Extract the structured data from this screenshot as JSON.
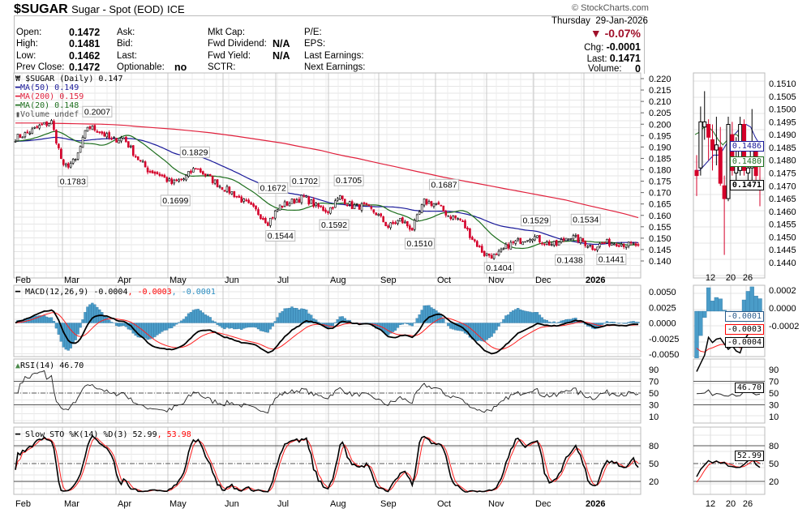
{
  "header": {
    "symbol": "$SUGAR",
    "name": "Sugar - Spot (EOD)",
    "exchange": "ICE",
    "watermark": "© StockCharts.com",
    "day": "Thursday",
    "date": "29-Jan-2026",
    "pct_change": "-0.07%",
    "chg_label": "Chg:",
    "chg": "-0.0001",
    "last_label": "Last:",
    "last": "0.1471",
    "volume_label": "Volume:",
    "volume": "0",
    "fields": [
      {
        "label": "Open:",
        "value": "0.1472"
      },
      {
        "label": "High:",
        "value": "0.1481"
      },
      {
        "label": "Low:",
        "value": "0.1462"
      },
      {
        "label": "Prev Close:",
        "value": "0.1472"
      },
      {
        "label": "Ask:",
        "value": ""
      },
      {
        "label": "Bid:",
        "value": ""
      },
      {
        "label": "Last:",
        "value": ""
      },
      {
        "label": "Optionable:",
        "value": "no"
      },
      {
        "label": "Mkt Cap:",
        "value": ""
      },
      {
        "label": "Fwd Dividend:",
        "value": "N/A"
      },
      {
        "label": "Fwd Yield:",
        "value": "N/A"
      },
      {
        "label": "SCTR:",
        "value": ""
      },
      {
        "label": "P/E:",
        "value": ""
      },
      {
        "label": "EPS:",
        "value": ""
      },
      {
        "label": "Last Earnings:",
        "value": ""
      },
      {
        "label": "Next Earnings:",
        "value": ""
      }
    ]
  },
  "legend": {
    "price": "$SUGAR (Daily) 0.147",
    "ma50": "MA(50) 0.149",
    "ma200": "MA(200) 0.159",
    "ma20": "MA(20) 0.148",
    "volume": "Volume undef",
    "macd": "MACD(12,26,9) -0.0004",
    "macd_signal": ", -0.0003",
    "macd_hist": ", -0.0001",
    "rsi": "RSI(14) 46.70",
    "sto": "Slow STO %K(14) %D(3) 52.99",
    "sto_d": ", 53.98"
  },
  "colors": {
    "up": "#000000",
    "down": "#d4002a",
    "ma50": "#1a1a9a",
    "ma200": "#e0203c",
    "ma20": "#1d6e1d",
    "hist": "#4a9cc8",
    "signal": "#ff2020"
  },
  "chart_data": {
    "type": "candlestick",
    "months": [
      "Feb",
      "Mar",
      "Apr",
      "May",
      "Jun",
      "Jul",
      "Aug",
      "Sep",
      "Oct",
      "Nov",
      "Dec",
      "2026"
    ],
    "price_ticks": [
      "0.220",
      "0.215",
      "0.210",
      "0.205",
      "0.200",
      "0.195",
      "0.190",
      "0.185",
      "0.180",
      "0.175",
      "0.170",
      "0.165",
      "0.160",
      "0.155",
      "0.150",
      "0.145",
      "0.140"
    ],
    "ylim": [
      0.1375,
      0.2215
    ],
    "weekly_close": [
      0.194,
      0.196,
      0.199,
      0.201,
      0.181,
      0.184,
      0.199,
      0.197,
      0.193,
      0.194,
      0.186,
      0.18,
      0.178,
      0.174,
      0.176,
      0.181,
      0.177,
      0.173,
      0.17,
      0.166,
      0.162,
      0.157,
      0.164,
      0.166,
      0.168,
      0.164,
      0.162,
      0.168,
      0.164,
      0.164,
      0.161,
      0.155,
      0.158,
      0.154,
      0.166,
      0.165,
      0.16,
      0.158,
      0.15,
      0.143,
      0.142,
      0.147,
      0.149,
      0.151,
      0.148,
      0.147,
      0.151,
      0.149,
      0.146,
      0.148,
      0.148,
      0.147
    ],
    "ma200_weekly": [
      0.2005,
      0.2005,
      0.2005,
      0.2004,
      0.2003,
      0.2002,
      0.2001,
      0.2,
      0.1998,
      0.1995,
      0.199,
      0.1986,
      0.1982,
      0.1978,
      0.1973,
      0.1968,
      0.1962,
      0.1955,
      0.1948,
      0.194,
      0.1932,
      0.1924,
      0.1916,
      0.1905,
      0.1895,
      0.1885,
      0.1872,
      0.186,
      0.185,
      0.1838,
      0.1826,
      0.1815,
      0.1803,
      0.1791,
      0.178,
      0.1768,
      0.1758,
      0.1748,
      0.1738,
      0.1728,
      0.1718,
      0.1708,
      0.1698,
      0.1688,
      0.1678,
      0.1668,
      0.1655,
      0.1642,
      0.163,
      0.1618,
      0.1605,
      0.159
    ],
    "annotations": [
      {
        "text": "0.2007",
        "week": 6.7,
        "price": 0.2007,
        "pos": "above"
      },
      {
        "text": "0.1783",
        "week": 4.7,
        "price": 0.1783,
        "pos": "below"
      },
      {
        "text": "0.1829",
        "week": 14.7,
        "price": 0.1829,
        "pos": "above"
      },
      {
        "text": "0.1699",
        "week": 13.1,
        "price": 0.1699,
        "pos": "below"
      },
      {
        "text": "0.1672",
        "week": 21.1,
        "price": 0.1672,
        "pos": "above"
      },
      {
        "text": "0.1544",
        "week": 21.7,
        "price": 0.1544,
        "pos": "below"
      },
      {
        "text": "0.1702",
        "week": 23.7,
        "price": 0.1702,
        "pos": "above"
      },
      {
        "text": "0.1592",
        "week": 26.1,
        "price": 0.1592,
        "pos": "below"
      },
      {
        "text": "0.1705",
        "week": 27.3,
        "price": 0.1705,
        "pos": "above"
      },
      {
        "text": "0.1510",
        "week": 33.1,
        "price": 0.151,
        "pos": "below"
      },
      {
        "text": "0.1687",
        "week": 35.1,
        "price": 0.1687,
        "pos": "above"
      },
      {
        "text": "0.1404",
        "week": 39.6,
        "price": 0.1404,
        "pos": "below"
      },
      {
        "text": "0.1529",
        "week": 42.6,
        "price": 0.1529,
        "pos": "above"
      },
      {
        "text": "0.1438",
        "week": 45.4,
        "price": 0.1438,
        "pos": "below"
      },
      {
        "text": "0.1534",
        "week": 46.7,
        "price": 0.1534,
        "pos": "above"
      },
      {
        "text": "0.1441",
        "week": 48.8,
        "price": 0.1441,
        "pos": "below"
      }
    ],
    "macd_ticks": [
      "0.0050",
      "0.0025",
      "0.0000",
      "-0.0025",
      "-0.0050"
    ],
    "rsi_ticks": [
      "90",
      "70",
      "50",
      "30",
      "10"
    ],
    "sto_ticks": [
      "80",
      "50",
      "20"
    ],
    "detail": {
      "dates": [
        "12",
        "20",
        "26"
      ],
      "price_ticks": [
        "0.1510",
        "0.1505",
        "0.1500",
        "0.1495",
        "0.1490",
        "0.1485",
        "0.1480",
        "0.1475",
        "0.1470",
        "0.1465",
        "0.1460",
        "0.1455",
        "0.1450",
        "0.1445",
        "0.1440"
      ],
      "ylim": [
        0.1437,
        0.1514
      ],
      "ohlc": [
        [
          0.1476,
          0.1482,
          0.1466,
          0.1474
        ],
        [
          0.1477,
          0.1501,
          0.1474,
          0.1495
        ],
        [
          0.1493,
          0.1507,
          0.1488,
          0.1495
        ],
        [
          0.1494,
          0.1496,
          0.148,
          0.1489
        ],
        [
          0.1488,
          0.1494,
          0.1476,
          0.1484
        ],
        [
          0.1484,
          0.1497,
          0.1478,
          0.1486
        ],
        [
          0.1485,
          0.1493,
          0.147,
          0.1471
        ],
        [
          0.147,
          0.1474,
          0.1443,
          0.1465
        ],
        [
          0.1465,
          0.1497,
          0.1464,
          0.1494
        ],
        [
          0.149,
          0.1495,
          0.1474,
          0.1476
        ],
        [
          0.1475,
          0.1489,
          0.1469,
          0.1478
        ],
        [
          0.1476,
          0.1497,
          0.1474,
          0.1494
        ],
        [
          0.1494,
          0.1496,
          0.1474,
          0.1476
        ],
        [
          0.1475,
          0.1481,
          0.1472,
          0.1477
        ],
        [
          0.1477,
          0.15,
          0.1472,
          0.1484
        ],
        [
          0.1484,
          0.1486,
          0.1471,
          0.1474
        ],
        [
          0.1472,
          0.1481,
          0.1462,
          0.1471
        ]
      ],
      "ma20": [
        0.149,
        0.1491,
        0.1493,
        0.1493,
        0.1491,
        0.1488,
        0.1486,
        0.1488,
        0.149,
        0.149,
        0.1488,
        0.1486,
        0.1483,
        0.1481,
        0.148
      ],
      "ma50": [
        0.1476,
        0.1476,
        0.1478,
        0.148,
        0.1482,
        0.1482,
        0.1484,
        0.1487,
        0.1489,
        0.1491,
        0.1493,
        0.1494,
        0.1493,
        0.1489,
        0.1486
      ],
      "last_tags": {
        "ma50": "0.1486",
        "ma20": "0.1480",
        "close": "0.1471"
      },
      "macd_ticks": [
        "0.0002",
        "0.0000",
        "-0.0002",
        "-0.0004"
      ],
      "macd_tags": {
        "hist": "-0.0001",
        "signal": "-0.0003",
        "macd": "-0.0004"
      },
      "rsi_tag": "46.70",
      "sto_tag": "52.99"
    }
  }
}
